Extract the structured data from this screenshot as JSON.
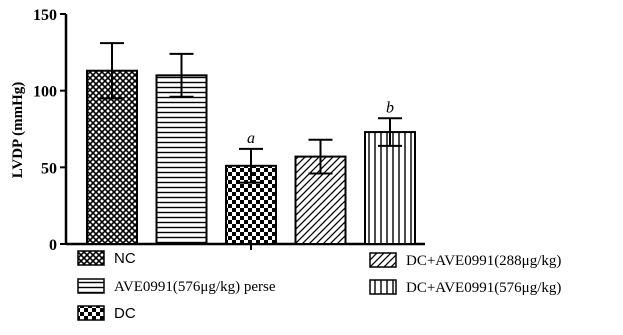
{
  "chart_data": {
    "type": "bar",
    "ylabel": "LVDP (mmHg)",
    "ylim": [
      0,
      150
    ],
    "yticks": [
      0,
      50,
      100,
      150
    ],
    "grid": false,
    "legend_position": "bottom",
    "series": [
      {
        "name": "NC",
        "value": 113,
        "error": 18,
        "annotation": "",
        "pattern": "crosshatch"
      },
      {
        "name": "AVE0991(576μg/kg) perse",
        "value": 110,
        "error": 14,
        "annotation": "",
        "pattern": "horizontal"
      },
      {
        "name": "DC",
        "value": 51,
        "error": 11,
        "annotation": "a",
        "pattern": "checker"
      },
      {
        "name": "DC+AVE0991(288μg/kg)",
        "value": 57,
        "error": 11,
        "annotation": "",
        "pattern": "diagonal"
      },
      {
        "name": "DC+AVE0991(576μg/kg)",
        "value": 73,
        "error": 9,
        "annotation": "b",
        "pattern": "vertical"
      }
    ]
  }
}
